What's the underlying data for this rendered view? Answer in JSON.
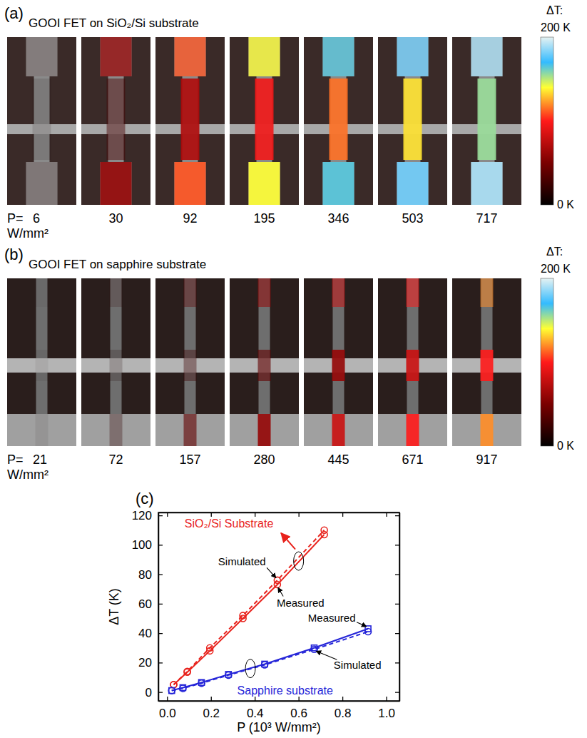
{
  "thermal_panels": [
    {
      "letter": "(a)",
      "title": "GOOI FET on SiO₂/Si substrate",
      "colorbar": {
        "title": "ΔT:",
        "range": [
          0,
          200
        ],
        "ticks": [
          {
            "value": 200,
            "label": "200 K"
          },
          {
            "value": 0,
            "label": "0 K"
          }
        ]
      },
      "power_prefix": "P=",
      "power_unit": "W/mm²",
      "images": [
        {
          "power": 6,
          "channel": 8,
          "contact": 15
        },
        {
          "power": 30,
          "channel": 30,
          "contact": 60
        },
        {
          "power": 92,
          "channel": 70,
          "contact": 110
        },
        {
          "power": 195,
          "channel": 95,
          "contact": 140
        },
        {
          "power": 346,
          "channel": 115,
          "contact": 165
        },
        {
          "power": 503,
          "channel": 135,
          "contact": 180
        },
        {
          "power": 717,
          "channel": 155,
          "contact": 190
        }
      ]
    },
    {
      "letter": "(b)",
      "title": "GOOI FET on sapphire substrate",
      "colorbar": {
        "title": "ΔT:",
        "range": [
          0,
          200
        ],
        "ticks": [
          {
            "value": 200,
            "label": "200 K"
          },
          {
            "value": 0,
            "label": "0 K"
          }
        ]
      },
      "power_prefix": "P=",
      "power_unit": "W/mm²",
      "images": [
        {
          "power": 21,
          "channel": 4,
          "contact": 5
        },
        {
          "power": 72,
          "channel": 12,
          "contact": 20
        },
        {
          "power": 157,
          "channel": 25,
          "contact": 40
        },
        {
          "power": 280,
          "channel": 40,
          "contact": 60
        },
        {
          "power": 445,
          "channel": 60,
          "contact": 80
        },
        {
          "power": 671,
          "channel": 80,
          "contact": 100
        },
        {
          "power": 917,
          "channel": 100,
          "contact": 120
        }
      ]
    }
  ],
  "chart_data": {
    "type": "line",
    "panel_label": "(c)",
    "x_label": "P (10³ W/mm²)",
    "y_label": "ΔT (K)",
    "xlim": [
      -0.04,
      1.06
    ],
    "xticks": [
      {
        "value": 0,
        "label": "0.0"
      },
      0.2,
      0.4,
      0.6,
      0.8,
      {
        "value": 1,
        "label": "1.0"
      }
    ],
    "ylim": [
      -6,
      122
    ],
    "yticks": [
      0,
      20,
      40,
      60,
      80,
      100,
      120
    ],
    "groups": [
      {
        "text": "SiO₂/Si Substrate",
        "color": "#e8221c"
      },
      {
        "text": "Sapphire substrate",
        "color": "#2424d8"
      }
    ],
    "series": [
      {
        "name": "Simulated",
        "color": "#e8221c",
        "line_style": "dashed",
        "marker": "circle",
        "x": [
          0.03,
          0.092,
          0.195,
          0.346,
          0.503,
          0.717
        ],
        "values": [
          5,
          14,
          30,
          52,
          76,
          110
        ]
      },
      {
        "name": "Measured",
        "color": "#e8221c",
        "line_style": "solid",
        "marker": "circle",
        "x": [
          0.03,
          0.092,
          0.195,
          0.346,
          0.503,
          0.717
        ],
        "values": [
          5,
          13.5,
          28,
          50,
          73,
          107
        ]
      },
      {
        "name": "Measured",
        "color": "#2424d8",
        "line_style": "solid",
        "marker": "square",
        "x": [
          0.021,
          0.072,
          0.157,
          0.28,
          0.445,
          0.671,
          0.917
        ],
        "values": [
          1,
          3,
          6.5,
          12,
          19,
          30,
          43
        ]
      },
      {
        "name": "Simulated",
        "color": "#2424d8",
        "line_style": "dashed",
        "marker": "circle",
        "x": [
          0.021,
          0.072,
          0.157,
          0.28,
          0.445,
          0.671,
          0.917
        ],
        "values": [
          1,
          2.5,
          6,
          11.5,
          18.5,
          29,
          41
        ]
      }
    ]
  }
}
